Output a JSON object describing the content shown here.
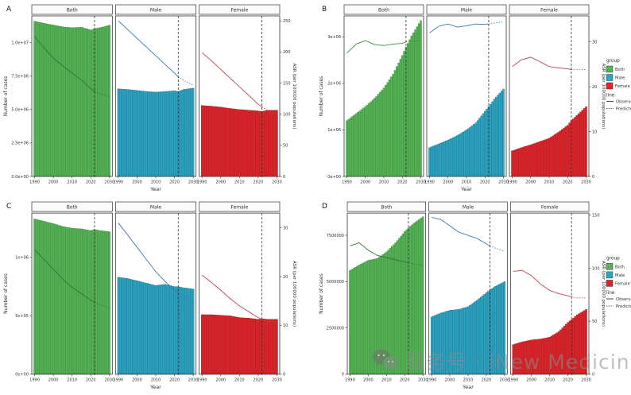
{
  "figure": {
    "background": "#ffffff"
  },
  "watermark": {
    "icon": "wechat-icon",
    "text": "服务号 · iNew Medicine"
  },
  "axes_labels": {
    "x": "Year",
    "left": "Number of cases",
    "right": "ASR (per 100000 populations)"
  },
  "legend": {
    "group_title": "group",
    "line_title": "line",
    "groups": [
      {
        "label": "Both",
        "color": "#57b257"
      },
      {
        "label": "Male",
        "color": "#2aa7c5"
      },
      {
        "label": "Female",
        "color": "#e32227"
      }
    ],
    "lines": [
      {
        "label": "Observed",
        "style": "solid"
      },
      {
        "label": "Predicted",
        "style": "dotted"
      }
    ]
  },
  "chart_data": [
    {
      "type": "bar",
      "letter": "A",
      "has_legend": false,
      "facet_labels": [
        "Both",
        "Male",
        "Female"
      ],
      "x_axis": {
        "range": [
          1988.5,
          2031.5
        ],
        "ticks": [
          1990,
          2000,
          2010,
          2020,
          2030
        ],
        "label": "Year"
      },
      "vline_year": 2022,
      "anchor_years": [
        1990,
        1995,
        2000,
        2005,
        2010,
        2015,
        2020,
        2022,
        2025,
        2030
      ],
      "left_axis": {
        "label": "Number of cases",
        "max": 12000000,
        "ticks": [
          {
            "v": 0,
            "label": "0.0e+00"
          },
          {
            "v": 2500000,
            "label": "2.5e+06"
          },
          {
            "v": 5000000,
            "label": "5.0e+06"
          },
          {
            "v": 7500000,
            "label": "7.5e+06"
          },
          {
            "v": 10000000,
            "label": "1.0e+07"
          }
        ]
      },
      "right_axis": {
        "label": "ASR (per 100000 populations)",
        "max": 258,
        "ticks": [
          {
            "v": 0,
            "label": "0"
          },
          {
            "v": 50,
            "label": "50"
          },
          {
            "v": 100,
            "label": "100"
          },
          {
            "v": 150,
            "label": "150"
          },
          {
            "v": 200,
            "label": "200"
          },
          {
            "v": 250,
            "label": "250"
          }
        ]
      },
      "facets": [
        {
          "label": "Both",
          "bar_fill": "#57b257",
          "bar_stroke": "#2f8f2f",
          "line_color": "#37703a",
          "cases": [
            11600000,
            11450000,
            11320000,
            11180000,
            11120000,
            11150000,
            10950000,
            11050000,
            11120000,
            11300000
          ],
          "asr": [
            225,
            207,
            190,
            178,
            166,
            155,
            141,
            137,
            133,
            128
          ]
        },
        {
          "label": "Male",
          "bar_fill": "#2aa7c5",
          "bar_stroke": "#17708d",
          "line_color": "#3a78b5",
          "cases": [
            6550000,
            6500000,
            6430000,
            6350000,
            6300000,
            6350000,
            6400000,
            6350000,
            6500000,
            6600000
          ],
          "asr": [
            250,
            236,
            222,
            208,
            194,
            180,
            166,
            160,
            154,
            147
          ]
        },
        {
          "label": "Female",
          "bar_fill": "#e32227",
          "bar_stroke": "#9e1418",
          "line_color": "#c2424d",
          "cases": [
            5300000,
            5250000,
            5180000,
            5080000,
            5000000,
            4950000,
            4900000,
            4850000,
            4950000,
            4950000
          ],
          "asr": [
            199,
            186,
            172,
            158,
            144,
            130,
            116,
            112,
            106,
            100
          ]
        }
      ]
    },
    {
      "type": "bar",
      "letter": "B",
      "has_legend": true,
      "facet_labels": [
        "Both",
        "Male",
        "Female"
      ],
      "x_axis": {
        "range": [
          1988.5,
          2031.5
        ],
        "ticks": [
          1990,
          2000,
          2010,
          2020,
          2030
        ],
        "label": "Year"
      },
      "vline_year": 2022,
      "anchor_years": [
        1990,
        1995,
        2000,
        2005,
        2010,
        2015,
        2020,
        2022,
        2025,
        2030
      ],
      "left_axis": {
        "label": "Number of cases",
        "max": 3450000,
        "ticks": [
          {
            "v": 0,
            "label": "0e+00"
          },
          {
            "v": 1000000,
            "label": "1e+06"
          },
          {
            "v": 2000000,
            "label": "2e+06"
          },
          {
            "v": 3000000,
            "label": "3e+06"
          }
        ]
      },
      "right_axis": {
        "label": "ASR (per 100000 populations)",
        "max": 35.8,
        "ticks": [
          {
            "v": 0,
            "label": "0"
          },
          {
            "v": 10,
            "label": "10"
          },
          {
            "v": 20,
            "label": "20"
          },
          {
            "v": 30,
            "label": "30"
          }
        ]
      },
      "facets": [
        {
          "label": "Both",
          "bar_fill": "#57b257",
          "bar_stroke": "#2f8f2f",
          "line_color": "#37903a",
          "cases": [
            1200000,
            1350000,
            1500000,
            1680000,
            1900000,
            2200000,
            2600000,
            2780000,
            3020000,
            3350000
          ],
          "asr": [
            27.5,
            29.5,
            30.3,
            29.4,
            29.2,
            29.5,
            29.7,
            30,
            30.1,
            30.3
          ]
        },
        {
          "label": "Male",
          "bar_fill": "#2aa7c5",
          "bar_stroke": "#17708d",
          "line_color": "#3a78b5",
          "cases": [
            620000,
            700000,
            780000,
            880000,
            1000000,
            1150000,
            1400000,
            1500000,
            1660000,
            1880000
          ],
          "asr": [
            32,
            33.5,
            34,
            33.3,
            33.6,
            34,
            33.9,
            34,
            34.2,
            34.5
          ]
        },
        {
          "label": "Female",
          "bar_fill": "#e32227",
          "bar_stroke": "#9e1418",
          "line_color": "#c2424d",
          "cases": [
            550000,
            620000,
            680000,
            750000,
            820000,
            950000,
            1100000,
            1200000,
            1310000,
            1500000
          ],
          "asr": [
            24.5,
            26,
            26.6,
            25.6,
            24.5,
            24.2,
            24,
            23.8,
            23.8,
            23.8
          ]
        }
      ]
    },
    {
      "type": "bar",
      "letter": "C",
      "has_legend": false,
      "facet_labels": [
        "Both",
        "Male",
        "Female"
      ],
      "x_axis": {
        "range": [
          1988.5,
          2031.5
        ],
        "ticks": [
          1990,
          2000,
          2010,
          2020,
          2030
        ],
        "label": "Year"
      },
      "vline_year": 2022,
      "anchor_years": [
        1990,
        1995,
        2000,
        2005,
        2010,
        2015,
        2020,
        2022,
        2025,
        2030
      ],
      "left_axis": {
        "label": "Number of cases",
        "max": 1380000,
        "ticks": [
          {
            "v": 0,
            "label": "0e+00"
          },
          {
            "v": 500000,
            "label": "5e+05"
          },
          {
            "v": 1000000,
            "label": "1e+06"
          }
        ]
      },
      "right_axis": {
        "label": "ASR (per 100000 populations)",
        "max": 33,
        "ticks": [
          {
            "v": 0,
            "label": "0"
          },
          {
            "v": 10,
            "label": "10"
          },
          {
            "v": 20,
            "label": "20"
          },
          {
            "v": 30,
            "label": "30"
          }
        ]
      },
      "facets": [
        {
          "label": "Both",
          "bar_fill": "#57b257",
          "bar_stroke": "#2f8f2f",
          "line_color": "#37703a",
          "cases": [
            1330000,
            1310000,
            1290000,
            1265000,
            1250000,
            1245000,
            1230000,
            1240000,
            1230000,
            1220000
          ],
          "asr": [
            25.5,
            23.5,
            21.5,
            19.5,
            17.8,
            16.5,
            15.2,
            14.7,
            14.2,
            13.5
          ]
        },
        {
          "label": "Male",
          "bar_fill": "#2aa7c5",
          "bar_stroke": "#17708d",
          "line_color": "#3a78b5",
          "cases": [
            830000,
            820000,
            800000,
            780000,
            760000,
            770000,
            750000,
            750000,
            740000,
            730000
          ],
          "asr": [
            31,
            28.5,
            26,
            23.5,
            21,
            19,
            17.2,
            16.5,
            16,
            15
          ]
        },
        {
          "label": "Female",
          "bar_fill": "#e32227",
          "bar_stroke": "#9e1418",
          "line_color": "#c2424d",
          "cases": [
            510000,
            510000,
            505000,
            500000,
            485000,
            480000,
            470000,
            475000,
            470000,
            470000
          ],
          "asr": [
            20.3,
            18.8,
            17.2,
            15.5,
            14,
            12.8,
            11.6,
            11.2,
            10.9,
            10.5
          ]
        }
      ]
    },
    {
      "type": "bar",
      "letter": "D",
      "has_legend": true,
      "facet_labels": [
        "Both",
        "Male",
        "Female"
      ],
      "x_axis": {
        "range": [
          1988.5,
          2031.5
        ],
        "ticks": [
          1990,
          2000,
          2010,
          2020,
          2030
        ],
        "label": "Year"
      },
      "vline_year": 2022,
      "anchor_years": [
        1990,
        1995,
        2000,
        2005,
        2010,
        2015,
        2020,
        2022,
        2025,
        2030
      ],
      "left_axis": {
        "label": "Number of cases",
        "max": 8700000,
        "ticks": [
          {
            "v": 0,
            "label": "0"
          },
          {
            "v": 2500000,
            "label": "2500000"
          },
          {
            "v": 5000000,
            "label": "5000000"
          },
          {
            "v": 7500000,
            "label": "7500000"
          }
        ]
      },
      "right_axis": {
        "label": "ASR (per 100000 populations)",
        "max": 152,
        "ticks": [
          {
            "v": 0,
            "label": "0"
          },
          {
            "v": 50,
            "label": "50"
          },
          {
            "v": 100,
            "label": "100"
          },
          {
            "v": 150,
            "label": "150"
          }
        ]
      },
      "facets": [
        {
          "label": "Both",
          "bar_fill": "#57b257",
          "bar_stroke": "#2f8f2f",
          "line_color": "#37703a",
          "cases": [
            5600000,
            5900000,
            6150000,
            6250000,
            6600000,
            7100000,
            7700000,
            7900000,
            8150000,
            8500000
          ],
          "asr": [
            121,
            124,
            117,
            112,
            110,
            108,
            106,
            105,
            104,
            103
          ]
        },
        {
          "label": "Male",
          "bar_fill": "#2aa7c5",
          "bar_stroke": "#17708d",
          "line_color": "#3a78b5",
          "cases": [
            3100000,
            3300000,
            3450000,
            3500000,
            3650000,
            4000000,
            4400000,
            4550000,
            4750000,
            5000000
          ],
          "asr": [
            148,
            146,
            140,
            134,
            131,
            128,
            123,
            121,
            119,
            116
          ]
        },
        {
          "label": "Female",
          "bar_fill": "#e32227",
          "bar_stroke": "#9e1418",
          "line_color": "#c2424d",
          "cases": [
            1600000,
            1750000,
            1850000,
            1900000,
            2000000,
            2300000,
            2800000,
            2950000,
            3200000,
            3500000
          ],
          "asr": [
            97,
            98,
            93,
            85,
            79,
            76,
            74,
            73,
            72,
            72
          ]
        }
      ]
    }
  ]
}
